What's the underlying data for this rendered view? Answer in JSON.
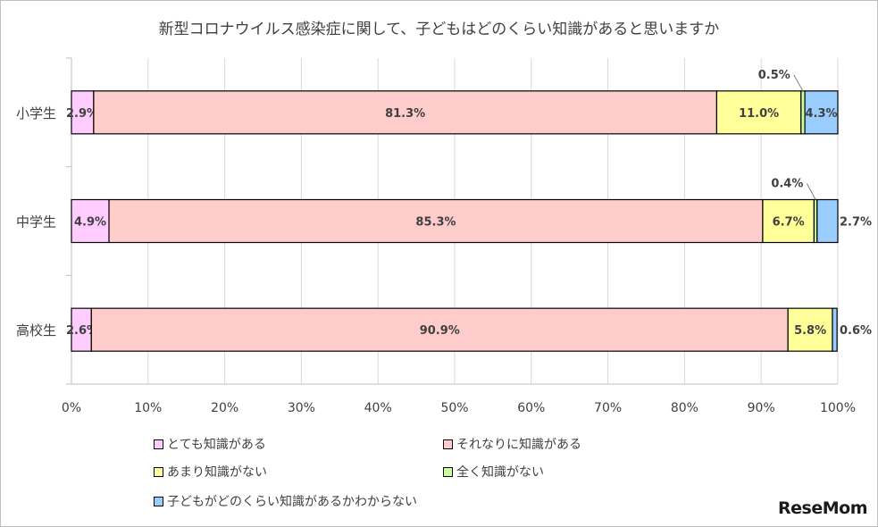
{
  "chart_data": {
    "type": "bar",
    "orientation": "horizontal-stacked-percent",
    "title": "新型コロナウイルス感染症に関して、子どもはどのくらい知識があると思いますか",
    "categories": [
      "小学生",
      "中学生",
      "高校生"
    ],
    "xlim": [
      0,
      100
    ],
    "x_ticks": [
      "0%",
      "10%",
      "20%",
      "30%",
      "40%",
      "50%",
      "60%",
      "70%",
      "80%",
      "90%",
      "100%"
    ],
    "grid": "vertical",
    "legend_position": "bottom",
    "series": [
      {
        "name": "とても知識がある",
        "color": "#ffccff",
        "values": [
          2.9,
          4.9,
          2.6
        ],
        "labels": [
          "2.9%",
          "4.9%",
          "2.6%"
        ]
      },
      {
        "name": "それなりに知識がある",
        "color": "#ffcccc",
        "values": [
          81.3,
          85.3,
          90.9
        ],
        "labels": [
          "81.3%",
          "85.3%",
          "90.9%"
        ]
      },
      {
        "name": "あまり知識がない",
        "color": "#ffff99",
        "values": [
          11.0,
          6.7,
          5.8
        ],
        "labels": [
          "11.0%",
          "6.7%",
          "5.8%"
        ]
      },
      {
        "name": "全く知識がない",
        "color": "#ccff99",
        "values": [
          0.5,
          0.4,
          0
        ],
        "labels": [
          "0.5%",
          "0.4%",
          ""
        ]
      },
      {
        "name": "子どもがどのくらい知識があるかわからない",
        "color": "#99ccff",
        "values": [
          4.3,
          2.7,
          0.6
        ],
        "labels": [
          "4.3%",
          "2.7%",
          "0.6%"
        ]
      }
    ]
  },
  "watermark": "ReseMom"
}
